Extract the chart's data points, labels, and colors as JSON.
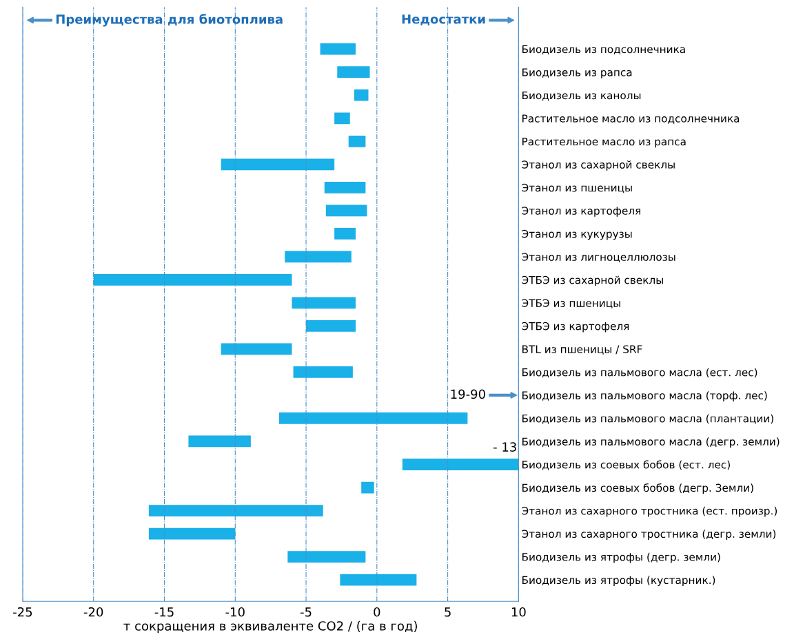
{
  "chart_data": {
    "type": "bar",
    "orientation": "horizontal",
    "xlabel": "т сокращения в эквиваленте CO2 / (га в год)",
    "categories": [
      "Биодизель из подсолнечника",
      "Биодизель из рапса",
      "Биодизель из канолы",
      "Растительное масло из подсолнечника",
      "Растительное масло из рапса",
      "Этанол из сахарной свеклы",
      "Этанол из пшеницы",
      "Этанол из картофеля",
      "Этанол из кукурузы",
      "Этанол из лигноцеллюлозы",
      "ЭТБЭ из сахарной свеклы",
      "ЭТБЭ из пшеницы",
      "ЭТБЭ из картофеля",
      "BTL из пшеницы / SRF",
      "Биодизель из пальмового масла (ест. лес)",
      "Биодизель из пальмового масла (торф. лес)",
      "Биодизель из пальмового масла (плантации)",
      "Биодизель из пальмового масла (дегр. земли)",
      "Биодизель из соевых бобов (ест. лес)",
      "Биодизель из соевых бобов (дегр. Земли)",
      "Этанол из сахарного тростника (ест. произр.)",
      "Этанол из сахарного тростника (дегр. земли)",
      "Биодизель из ятрофы (дегр. земли)",
      "Биодизель из ятрофы (кустарник.)"
    ],
    "base": [
      -4.0,
      -2.8,
      -1.6,
      -3.0,
      -2.0,
      -11.0,
      -3.7,
      -3.6,
      -3.0,
      -6.5,
      -20.0,
      -6.0,
      -5.0,
      -11.0,
      -5.9,
      null,
      -6.9,
      -13.3,
      1.8,
      -1.1,
      -16.1,
      -16.1,
      -6.3,
      -2.6
    ],
    "values": [
      2.5,
      2.3,
      1.0,
      1.1,
      1.2,
      8.0,
      2.9,
      2.9,
      1.5,
      4.7,
      14.0,
      4.5,
      3.5,
      5.0,
      4.2,
      null,
      13.3,
      4.4,
      8.2,
      0.9,
      12.3,
      6.1,
      5.5,
      5.4
    ],
    "color": "#1ab0e8",
    "xlim": [
      -25,
      10
    ],
    "xticks": [
      -25,
      -20,
      -15,
      -10,
      -5,
      0,
      5,
      10
    ],
    "grid": "x",
    "annotations": [
      "Преимущества для биотоплива",
      "Недостатки",
      "19-90",
      {
        "text": "- 13",
        "x": 10,
        "y": "Биодизель из соевых бобов (ест. лес)"
      }
    ]
  }
}
